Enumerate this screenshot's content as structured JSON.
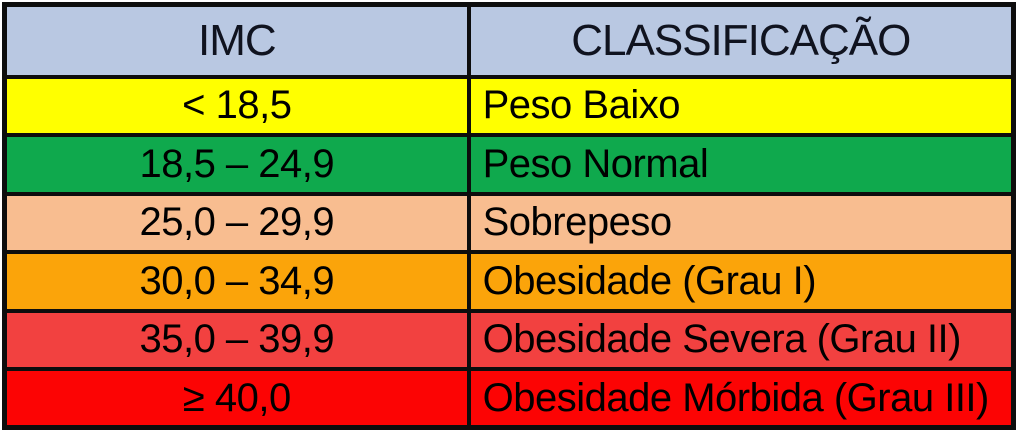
{
  "chart_data": {
    "type": "table",
    "title": "IMC classification table",
    "columns": [
      "IMC",
      "CLASSIFICAÇÃO"
    ],
    "rows": [
      {
        "imc": "< 18,5",
        "classification": "Peso Baixo",
        "row_color": "#ffff00"
      },
      {
        "imc": "18,5 – 24,9",
        "classification": "Peso Normal",
        "row_color": "#0fa94d"
      },
      {
        "imc": "25,0 – 29,9",
        "classification": "Sobrepeso",
        "row_color": "#f8bd90"
      },
      {
        "imc": "30,0 – 34,9",
        "classification": "Obesidade (Grau I)",
        "row_color": "#fba40a"
      },
      {
        "imc": "35,0 – 39,9",
        "classification": "Obesidade Severa (Grau II)",
        "row_color": "#f24140"
      },
      {
        "imc": "≥ 40,0",
        "classification": "Obesidade Mórbida (Grau III)",
        "row_color": "#fc0404"
      }
    ]
  },
  "colors": {
    "page_bg": "#ffffff",
    "border": "#0d0d0d",
    "header_bg": "#b9c8e2",
    "header_text": "#10131f",
    "row_text": "#000000"
  }
}
